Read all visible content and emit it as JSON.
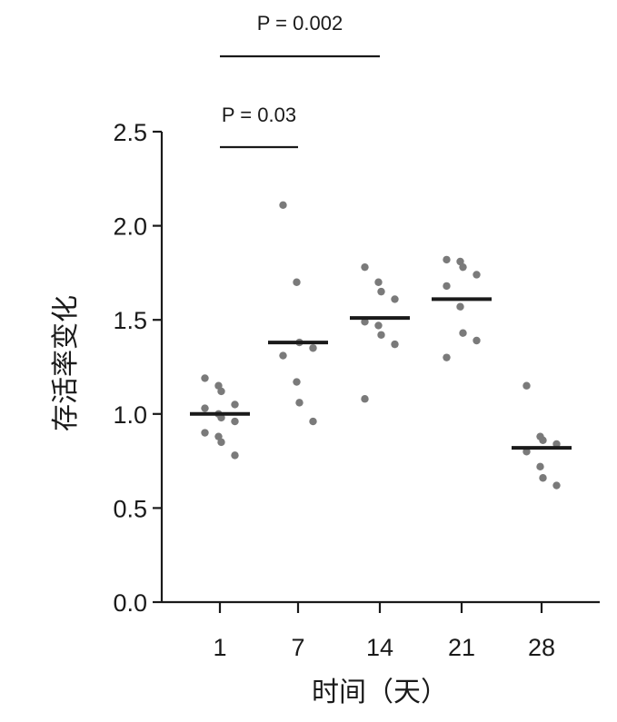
{
  "chart_data": {
    "type": "scatter",
    "xlabel": "时间（天）",
    "ylabel": "存活率变化",
    "categories": [
      "1",
      "7",
      "14",
      "21",
      "28"
    ],
    "ylim": [
      0.0,
      2.5
    ],
    "yticks": [
      "0.0",
      "0.5",
      "1.0",
      "1.5",
      "2.0",
      "2.5"
    ],
    "grid": false,
    "groups": [
      {
        "category": "1",
        "median": 1.0,
        "points": [
          1.19,
          1.15,
          1.12,
          1.05,
          1.03,
          1.0,
          0.98,
          0.96,
          0.9,
          0.88,
          0.85,
          0.78
        ]
      },
      {
        "category": "7",
        "median": 1.38,
        "points": [
          2.11,
          1.7,
          1.38,
          1.35,
          1.31,
          1.17,
          1.06,
          0.96
        ]
      },
      {
        "category": "14",
        "median": 1.51,
        "points": [
          1.78,
          1.7,
          1.65,
          1.61,
          1.49,
          1.47,
          1.42,
          1.37,
          1.08
        ]
      },
      {
        "category": "21",
        "median": 1.61,
        "points": [
          1.82,
          1.81,
          1.78,
          1.74,
          1.68,
          1.57,
          1.43,
          1.39,
          1.3
        ]
      },
      {
        "category": "28",
        "median": 0.82,
        "points": [
          1.15,
          0.88,
          0.86,
          0.84,
          0.8,
          0.72,
          0.66,
          0.62
        ]
      }
    ],
    "significance": [
      {
        "label": "P = 0.002",
        "from": "1",
        "to": "14"
      },
      {
        "label": "P = 0.03",
        "from": "1",
        "to": "7"
      }
    ]
  }
}
